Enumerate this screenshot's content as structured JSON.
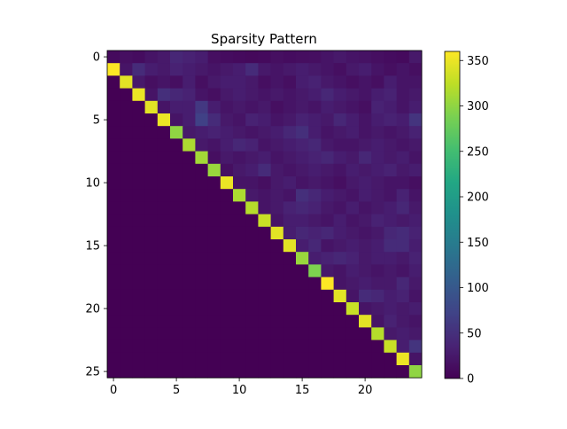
{
  "chart_data": {
    "type": "heatmap",
    "title": "Sparsity Pattern",
    "xlabel": "",
    "ylabel": "",
    "rows": 26,
    "cols": 25,
    "xticks": [
      0,
      5,
      10,
      15,
      20
    ],
    "yticks": [
      0,
      5,
      10,
      15,
      20,
      25
    ],
    "colormap": "viridis",
    "colorbar": {
      "min": 0,
      "max": 360,
      "ticks": [
        0,
        50,
        100,
        150,
        200,
        250,
        300,
        350
      ]
    },
    "grid": false,
    "diagonal_band": {
      "description_rows": "row r>=1 has diagonal at column r-1",
      "values": [
        360,
        345,
        350,
        345,
        350,
        300,
        315,
        310,
        305,
        350,
        315,
        320,
        330,
        345,
        345,
        305,
        290,
        360,
        345,
        330,
        345,
        320,
        330,
        350,
        300
      ]
    },
    "upper_triangle_values": [
      [
        10,
        15,
        12,
        20,
        25,
        40,
        35,
        30,
        15,
        12,
        10,
        8,
        10,
        15,
        12,
        14,
        15,
        20,
        25,
        20,
        18,
        15,
        12,
        10,
        25
      ],
      [
        0,
        20,
        45,
        30,
        25,
        35,
        30,
        25,
        20,
        25,
        30,
        45,
        25,
        20,
        25,
        30,
        25,
        20,
        15,
        25,
        30,
        20,
        15,
        20,
        15
      ],
      [
        0,
        0,
        25,
        15,
        20,
        15,
        30,
        15,
        25,
        30,
        30,
        25,
        15,
        20,
        15,
        30,
        35,
        25,
        20,
        15,
        20,
        15,
        30,
        20,
        20
      ],
      [
        0,
        0,
        0,
        20,
        50,
        40,
        35,
        20,
        15,
        25,
        30,
        25,
        20,
        25,
        20,
        25,
        30,
        40,
        30,
        25,
        20,
        30,
        35,
        20,
        25
      ],
      [
        0,
        0,
        0,
        0,
        20,
        30,
        30,
        60,
        30,
        20,
        25,
        20,
        25,
        15,
        20,
        25,
        20,
        30,
        25,
        20,
        15,
        35,
        30,
        20,
        30
      ],
      [
        0,
        0,
        0,
        0,
        0,
        20,
        30,
        70,
        45,
        25,
        20,
        35,
        30,
        20,
        25,
        35,
        30,
        25,
        40,
        30,
        20,
        30,
        35,
        30,
        55
      ],
      [
        0,
        0,
        0,
        0,
        0,
        0,
        25,
        30,
        35,
        30,
        25,
        20,
        25,
        30,
        40,
        50,
        30,
        20,
        25,
        30,
        20,
        25,
        20,
        25,
        35
      ],
      [
        0,
        0,
        0,
        0,
        0,
        0,
        0,
        25,
        20,
        30,
        40,
        35,
        20,
        25,
        30,
        35,
        40,
        25,
        20,
        20,
        25,
        30,
        25,
        20,
        25
      ],
      [
        0,
        0,
        0,
        0,
        0,
        0,
        0,
        0,
        15,
        25,
        20,
        25,
        30,
        20,
        25,
        30,
        35,
        40,
        30,
        25,
        40,
        30,
        25,
        30,
        20
      ],
      [
        0,
        0,
        0,
        0,
        0,
        0,
        0,
        0,
        0,
        15,
        25,
        30,
        45,
        25,
        20,
        25,
        30,
        25,
        20,
        30,
        25,
        30,
        35,
        25,
        30
      ],
      [
        0,
        0,
        0,
        0,
        0,
        0,
        0,
        0,
        0,
        0,
        20,
        20,
        15,
        25,
        30,
        20,
        25,
        20,
        15,
        25,
        30,
        25,
        20,
        20,
        15
      ],
      [
        0,
        0,
        0,
        0,
        0,
        0,
        0,
        0,
        0,
        0,
        0,
        25,
        20,
        25,
        20,
        50,
        40,
        30,
        25,
        20,
        30,
        25,
        20,
        35,
        20
      ],
      [
        0,
        0,
        0,
        0,
        0,
        0,
        0,
        0,
        0,
        0,
        0,
        0,
        20,
        25,
        35,
        40,
        35,
        25,
        20,
        30,
        20,
        25,
        30,
        40,
        25
      ],
      [
        0,
        0,
        0,
        0,
        0,
        0,
        0,
        0,
        0,
        0,
        0,
        0,
        0,
        20,
        30,
        30,
        25,
        20,
        30,
        20,
        25,
        35,
        30,
        25,
        30
      ],
      [
        0,
        0,
        0,
        0,
        0,
        0,
        0,
        0,
        0,
        0,
        0,
        0,
        0,
        0,
        30,
        40,
        35,
        40,
        30,
        25,
        20,
        25,
        40,
        45,
        35
      ],
      [
        0,
        0,
        0,
        0,
        0,
        0,
        0,
        0,
        0,
        0,
        0,
        0,
        0,
        0,
        0,
        30,
        40,
        20,
        25,
        30,
        25,
        30,
        45,
        45,
        30
      ],
      [
        0,
        0,
        0,
        0,
        0,
        0,
        0,
        0,
        0,
        0,
        0,
        0,
        0,
        0,
        0,
        0,
        30,
        35,
        40,
        35,
        25,
        30,
        30,
        25,
        35
      ],
      [
        0,
        0,
        0,
        0,
        0,
        0,
        0,
        0,
        0,
        0,
        0,
        0,
        0,
        0,
        0,
        0,
        0,
        25,
        20,
        30,
        25,
        20,
        25,
        20,
        30
      ],
      [
        0,
        0,
        0,
        0,
        0,
        0,
        0,
        0,
        0,
        0,
        0,
        0,
        0,
        0,
        0,
        0,
        0,
        0,
        20,
        25,
        30,
        25,
        25,
        40,
        25
      ],
      [
        0,
        0,
        0,
        0,
        0,
        0,
        0,
        0,
        0,
        0,
        0,
        0,
        0,
        0,
        0,
        0,
        0,
        0,
        0,
        20,
        45,
        40,
        30,
        35,
        20
      ],
      [
        0,
        0,
        0,
        0,
        0,
        0,
        0,
        0,
        0,
        0,
        0,
        0,
        0,
        0,
        0,
        0,
        0,
        0,
        0,
        0,
        20,
        25,
        30,
        25,
        30
      ],
      [
        0,
        0,
        0,
        0,
        0,
        0,
        0,
        0,
        0,
        0,
        0,
        0,
        0,
        0,
        0,
        0,
        0,
        0,
        0,
        0,
        0,
        20,
        35,
        25,
        20
      ],
      [
        0,
        0,
        0,
        0,
        0,
        0,
        0,
        0,
        0,
        0,
        0,
        0,
        0,
        0,
        0,
        0,
        0,
        0,
        0,
        0,
        0,
        0,
        25,
        30,
        25
      ],
      [
        0,
        0,
        0,
        0,
        0,
        0,
        0,
        0,
        0,
        0,
        0,
        0,
        0,
        0,
        0,
        0,
        0,
        0,
        0,
        0,
        0,
        0,
        0,
        30,
        55
      ],
      [
        0,
        0,
        0,
        0,
        0,
        0,
        0,
        0,
        0,
        0,
        0,
        0,
        0,
        0,
        0,
        0,
        0,
        0,
        0,
        0,
        0,
        0,
        0,
        0,
        20
      ],
      [
        0,
        0,
        0,
        0,
        0,
        0,
        0,
        0,
        0,
        0,
        0,
        0,
        0,
        0,
        0,
        0,
        0,
        0,
        0,
        0,
        0,
        0,
        0,
        0,
        0
      ]
    ]
  }
}
